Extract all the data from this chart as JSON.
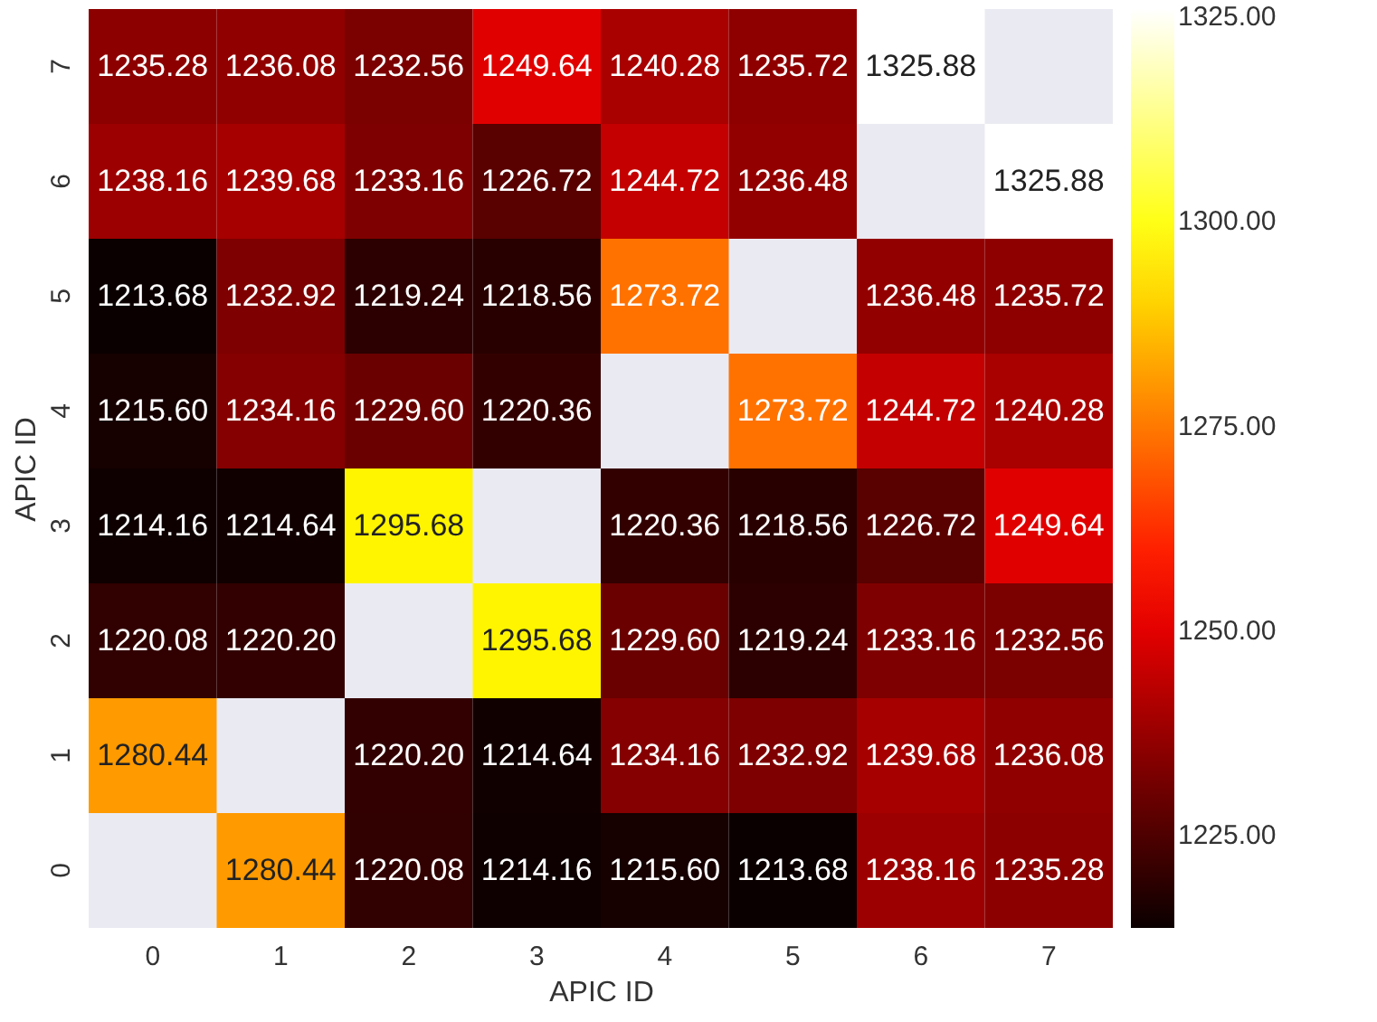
{
  "chart_data": {
    "type": "heatmap",
    "xlabel": "APIC ID",
    "ylabel": "APIC ID",
    "categories": [
      "0",
      "1",
      "2",
      "3",
      "4",
      "5",
      "6",
      "7"
    ],
    "y_categories": [
      "7",
      "6",
      "5",
      "4",
      "3",
      "2",
      "1",
      "0"
    ],
    "cells": [
      [
        1235.28,
        1236.08,
        1232.56,
        1249.64,
        1240.28,
        1235.72,
        1325.88,
        null
      ],
      [
        1238.16,
        1239.68,
        1233.16,
        1226.72,
        1244.72,
        1236.48,
        null,
        1325.88
      ],
      [
        1213.68,
        1232.92,
        1219.24,
        1218.56,
        1273.72,
        null,
        1236.48,
        1235.72
      ],
      [
        1215.6,
        1234.16,
        1229.6,
        1220.36,
        null,
        1273.72,
        1244.72,
        1240.28
      ],
      [
        1214.16,
        1214.64,
        1295.68,
        null,
        1220.36,
        1218.56,
        1226.72,
        1249.64
      ],
      [
        1220.08,
        1220.2,
        null,
        1295.68,
        1229.6,
        1219.24,
        1233.16,
        1232.56
      ],
      [
        1280.44,
        null,
        1220.2,
        1214.64,
        1234.16,
        1232.92,
        1239.68,
        1236.08
      ],
      [
        null,
        1280.44,
        1220.08,
        1214.16,
        1215.6,
        1213.68,
        1238.16,
        1235.28
      ]
    ],
    "clim": [
      1213.68,
      1325.88
    ],
    "cticks": [
      {
        "value": 1225,
        "label": "1225.00"
      },
      {
        "value": 1250,
        "label": "1250.00"
      },
      {
        "value": 1275,
        "label": "1275.00"
      },
      {
        "value": 1300,
        "label": "1300.00"
      },
      {
        "value": 1325,
        "label": "1325.00"
      }
    ],
    "cell_labels": [
      [
        "1235.28",
        "1236.08",
        "1232.56",
        "1249.64",
        "1240.28",
        "1235.72",
        "1325.88",
        null
      ],
      [
        "1238.16",
        "1239.68",
        "1233.16",
        "1226.72",
        "1244.72",
        "1236.48",
        null,
        "1325.88"
      ],
      [
        "1213.68",
        "1232.92",
        "1219.24",
        "1218.56",
        "1273.72",
        null,
        "1236.48",
        "1235.72"
      ],
      [
        "1215.60",
        "1234.16",
        "1229.60",
        "1220.36",
        null,
        "1273.72",
        "1244.72",
        "1240.28"
      ],
      [
        "1214.16",
        "1214.64",
        "1295.68",
        null,
        "1220.36",
        "1218.56",
        "1226.72",
        "1249.64"
      ],
      [
        "1220.08",
        "1220.20",
        null,
        "1295.68",
        "1229.60",
        "1219.24",
        "1233.16",
        "1232.56"
      ],
      [
        "1280.44",
        null,
        "1220.20",
        "1214.64",
        "1234.16",
        "1232.92",
        "1239.68",
        "1236.08"
      ],
      [
        null,
        "1280.44",
        "1220.08",
        "1214.16",
        "1215.60",
        "1213.68",
        "1238.16",
        "1235.28"
      ]
    ]
  }
}
